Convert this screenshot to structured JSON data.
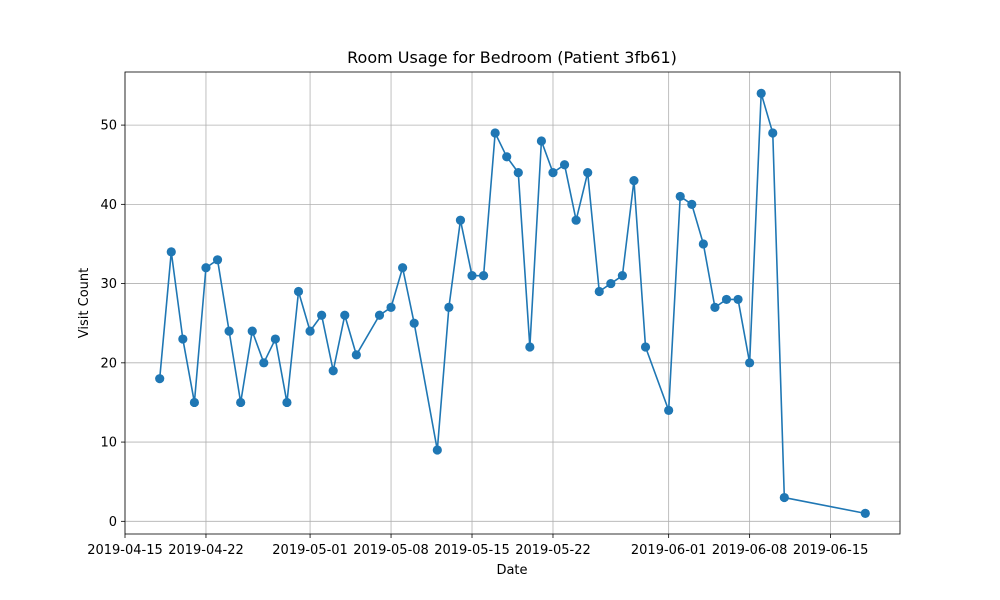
{
  "chart_data": {
    "type": "line",
    "title": "Room Usage for Bedroom (Patient 3fb61)",
    "xlabel": "Date",
    "ylabel": "Visit Count",
    "grid": true,
    "marker": "circle",
    "color": "#1f77b4",
    "xlim": [
      "2019-04-15",
      "2019-06-21"
    ],
    "ylim": [
      -1.6,
      56.7
    ],
    "x_ticks": [
      "2019-04-15",
      "2019-04-22",
      "2019-05-01",
      "2019-05-08",
      "2019-05-15",
      "2019-05-22",
      "2019-06-01",
      "2019-06-08",
      "2019-06-15"
    ],
    "y_ticks": [
      0,
      10,
      20,
      30,
      40,
      50
    ],
    "series": [
      {
        "x": [
          "2019-04-18",
          "2019-04-19",
          "2019-04-20",
          "2019-04-21",
          "2019-04-22",
          "2019-04-23",
          "2019-04-24",
          "2019-04-25",
          "2019-04-26",
          "2019-04-27",
          "2019-04-28",
          "2019-04-29",
          "2019-04-30",
          "2019-05-01",
          "2019-05-02",
          "2019-05-03",
          "2019-05-04",
          "2019-05-05",
          "2019-05-07",
          "2019-05-08",
          "2019-05-09",
          "2019-05-10",
          "2019-05-12",
          "2019-05-13",
          "2019-05-14",
          "2019-05-15",
          "2019-05-16",
          "2019-05-17",
          "2019-05-18",
          "2019-05-19",
          "2019-05-20",
          "2019-05-21",
          "2019-05-22",
          "2019-05-23",
          "2019-05-24",
          "2019-05-25",
          "2019-05-26",
          "2019-05-27",
          "2019-05-28",
          "2019-05-29",
          "2019-05-30",
          "2019-06-01",
          "2019-06-02",
          "2019-06-03",
          "2019-06-04",
          "2019-06-05",
          "2019-06-06",
          "2019-06-07",
          "2019-06-08",
          "2019-06-09",
          "2019-06-10",
          "2019-06-11",
          "2019-06-18"
        ],
        "y": [
          18,
          34,
          23,
          15,
          32,
          33,
          24,
          15,
          24,
          20,
          23,
          15,
          29,
          24,
          26,
          19,
          26,
          21,
          26,
          27,
          32,
          25,
          9,
          27,
          38,
          31,
          31,
          49,
          46,
          44,
          22,
          48,
          44,
          45,
          38,
          44,
          29,
          30,
          31,
          43,
          22,
          14,
          41,
          40,
          35,
          27,
          28,
          28,
          20,
          54,
          49,
          3,
          1
        ]
      }
    ]
  }
}
